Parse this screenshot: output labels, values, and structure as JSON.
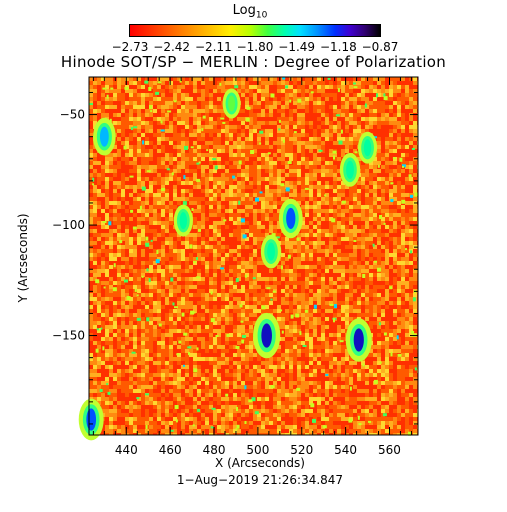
{
  "colorbar": {
    "title": "Log",
    "title_sub": "10",
    "tick_labels": [
      "−2.73",
      "−2.42",
      "−2.11",
      "−1.80",
      "−1.49",
      "−1.18",
      "−0.87"
    ],
    "range": [
      -2.73,
      -0.87
    ],
    "colormap": [
      "#ff0000",
      "#ff7a00",
      "#ffee00",
      "#40ff40",
      "#00e0ff",
      "#0030ff",
      "#300070",
      "#000000"
    ]
  },
  "chart_data": {
    "type": "heatmap",
    "title": "Hinode SOT/SP − MERLIN : Degree of Polarization",
    "xlabel": "X (Arcseconds)",
    "ylabel": "Y (Arcseconds)",
    "xlim": [
      423,
      573
    ],
    "ylim": [
      -195,
      -33
    ],
    "x_ticks": [
      440,
      460,
      480,
      500,
      520,
      540,
      560
    ],
    "y_ticks": [
      -50,
      -100,
      -150
    ],
    "background_colors": [
      "#ff3000",
      "#ff5a00",
      "#ff8a10",
      "#ffb020",
      "#ffd830"
    ],
    "features": [
      {
        "x": 504,
        "y": -150,
        "level": -1.0
      },
      {
        "x": 546,
        "y": -152,
        "level": -1.1
      },
      {
        "x": 515,
        "y": -97,
        "level": -1.3
      },
      {
        "x": 506,
        "y": -112,
        "level": -1.6
      },
      {
        "x": 466,
        "y": -98,
        "level": -1.7
      },
      {
        "x": 430,
        "y": -60,
        "level": -1.4
      },
      {
        "x": 424,
        "y": -188,
        "level": -1.2
      },
      {
        "x": 542,
        "y": -75,
        "level": -1.6
      },
      {
        "x": 488,
        "y": -45,
        "level": -1.8
      },
      {
        "x": 550,
        "y": -65,
        "level": -1.7
      }
    ]
  },
  "footer": {
    "date": "1−Aug−2019 21:26:34.847"
  }
}
